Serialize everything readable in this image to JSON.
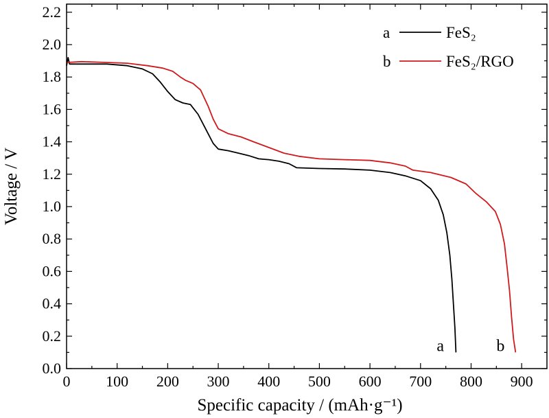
{
  "chart_data": {
    "type": "line",
    "xlabel": "Specific capacity / (mAh·g⁻¹)",
    "ylabel": "Voltage / V",
    "xlim": [
      0,
      950
    ],
    "ylim": [
      0,
      2.25
    ],
    "xticks": [
      0,
      100,
      200,
      300,
      400,
      500,
      600,
      700,
      800,
      900
    ],
    "yticks": [
      0.0,
      0.2,
      0.4,
      0.6,
      0.8,
      1.0,
      1.2,
      1.4,
      1.6,
      1.8,
      2.0,
      2.2
    ],
    "xtick_labels": [
      "0",
      "100",
      "200",
      "300",
      "400",
      "500",
      "600",
      "700",
      "800",
      "900"
    ],
    "ytick_labels": [
      "0.0",
      "0.2",
      "0.4",
      "0.6",
      "0.8",
      "1.0",
      "1.2",
      "1.4",
      "1.6",
      "1.8",
      "2.0",
      "2.2"
    ],
    "legend_position": "top-right",
    "grid": false,
    "series": [
      {
        "key": "a",
        "name": "FeS₂",
        "color": "#000000",
        "end_label": "a",
        "points": [
          [
            0,
            1.87
          ],
          [
            3,
            1.92
          ],
          [
            6,
            1.88
          ],
          [
            30,
            1.88
          ],
          [
            80,
            1.88
          ],
          [
            120,
            1.87
          ],
          [
            150,
            1.85
          ],
          [
            170,
            1.82
          ],
          [
            185,
            1.77
          ],
          [
            200,
            1.71
          ],
          [
            215,
            1.66
          ],
          [
            230,
            1.64
          ],
          [
            245,
            1.63
          ],
          [
            260,
            1.57
          ],
          [
            275,
            1.48
          ],
          [
            290,
            1.39
          ],
          [
            300,
            1.355
          ],
          [
            320,
            1.345
          ],
          [
            340,
            1.33
          ],
          [
            360,
            1.315
          ],
          [
            380,
            1.295
          ],
          [
            400,
            1.29
          ],
          [
            420,
            1.28
          ],
          [
            440,
            1.265
          ],
          [
            455,
            1.24
          ],
          [
            500,
            1.235
          ],
          [
            550,
            1.232
          ],
          [
            600,
            1.225
          ],
          [
            640,
            1.21
          ],
          [
            670,
            1.19
          ],
          [
            700,
            1.16
          ],
          [
            720,
            1.11
          ],
          [
            735,
            1.04
          ],
          [
            745,
            0.95
          ],
          [
            752,
            0.84
          ],
          [
            758,
            0.7
          ],
          [
            762,
            0.55
          ],
          [
            765,
            0.4
          ],
          [
            768,
            0.25
          ],
          [
            770,
            0.1
          ]
        ]
      },
      {
        "key": "b",
        "name": "FeS₂/RGO",
        "color": "#d0191c",
        "end_label": "b",
        "points": [
          [
            0,
            1.89
          ],
          [
            30,
            1.895
          ],
          [
            80,
            1.89
          ],
          [
            120,
            1.885
          ],
          [
            160,
            1.87
          ],
          [
            190,
            1.855
          ],
          [
            210,
            1.835
          ],
          [
            225,
            1.8
          ],
          [
            235,
            1.78
          ],
          [
            250,
            1.76
          ],
          [
            265,
            1.72
          ],
          [
            280,
            1.62
          ],
          [
            290,
            1.54
          ],
          [
            300,
            1.48
          ],
          [
            320,
            1.45
          ],
          [
            345,
            1.43
          ],
          [
            370,
            1.4
          ],
          [
            400,
            1.365
          ],
          [
            430,
            1.33
          ],
          [
            460,
            1.31
          ],
          [
            500,
            1.295
          ],
          [
            550,
            1.29
          ],
          [
            600,
            1.285
          ],
          [
            640,
            1.27
          ],
          [
            670,
            1.25
          ],
          [
            685,
            1.225
          ],
          [
            720,
            1.21
          ],
          [
            760,
            1.18
          ],
          [
            790,
            1.14
          ],
          [
            810,
            1.08
          ],
          [
            830,
            1.03
          ],
          [
            848,
            0.97
          ],
          [
            858,
            0.89
          ],
          [
            866,
            0.77
          ],
          [
            871,
            0.63
          ],
          [
            876,
            0.48
          ],
          [
            880,
            0.32
          ],
          [
            884,
            0.18
          ],
          [
            888,
            0.1
          ]
        ]
      }
    ]
  }
}
